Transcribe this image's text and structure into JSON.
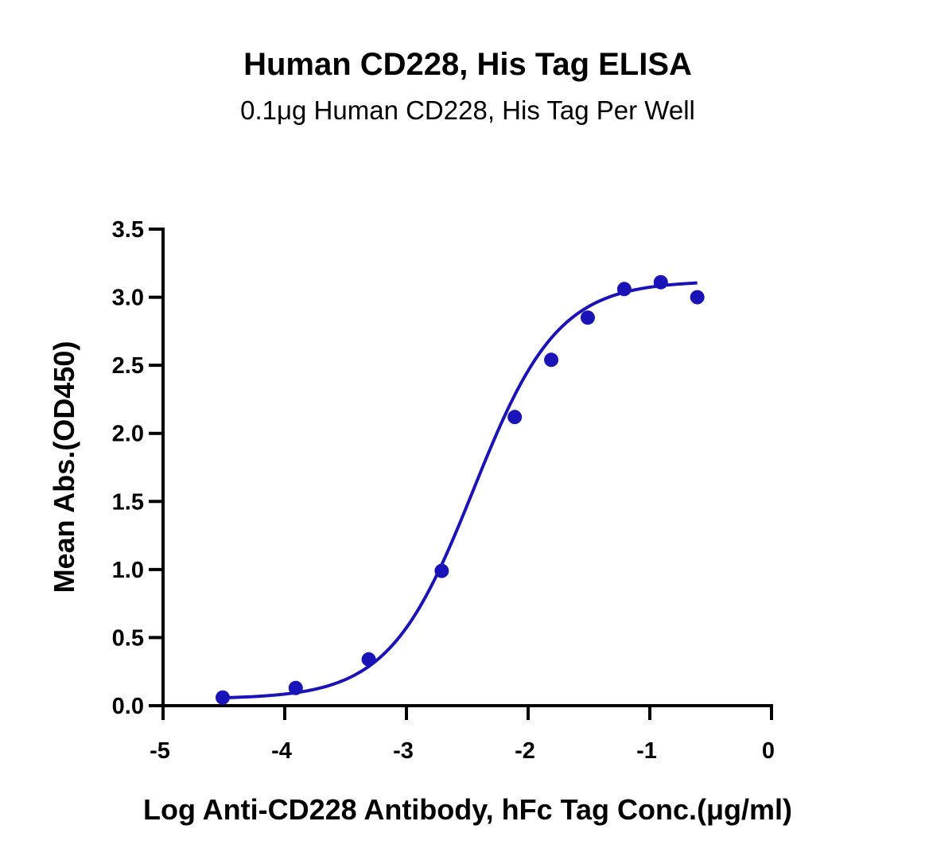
{
  "chart_data": {
    "type": "scatter",
    "title": "Human CD228, His Tag ELISA",
    "subtitle": "0.1μg Human CD228, His Tag Per Well",
    "xlabel": "Log Anti-CD228 Antibody, hFc Tag Conc.(μg/ml)",
    "ylabel": "Mean Abs.(OD450)",
    "xlim": [
      -5,
      0
    ],
    "ylim": [
      0,
      3.5
    ],
    "x_ticks": [
      -5,
      -4,
      -3,
      -2,
      -1,
      0
    ],
    "x_tick_labels": [
      "-5",
      "-4",
      "-3",
      "-2",
      "-1",
      "0"
    ],
    "y_ticks": [
      0,
      0.5,
      1.0,
      1.5,
      2.0,
      2.5,
      3.0,
      3.5
    ],
    "y_tick_labels": [
      "0.0",
      "0.5",
      "1.0",
      "1.5",
      "2.0",
      "2.5",
      "3.0",
      "3.5"
    ],
    "grid": false,
    "legend": "none",
    "color": "#1a14b8",
    "series": [
      {
        "x": [
          -4.51,
          -3.91,
          -3.31,
          -2.71,
          -2.11,
          -1.81,
          -1.51,
          -1.21,
          -0.91,
          -0.61
        ],
        "y": [
          0.06,
          0.13,
          0.34,
          0.99,
          2.12,
          2.54,
          2.85,
          3.06,
          3.11,
          3.0
        ]
      }
    ],
    "fit": {
      "model": "4PL",
      "bottom": 0.05,
      "top": 3.12,
      "log_ec50": -2.45,
      "hill_slope": 1.25,
      "x_range": [
        -4.51,
        -0.61
      ]
    }
  }
}
